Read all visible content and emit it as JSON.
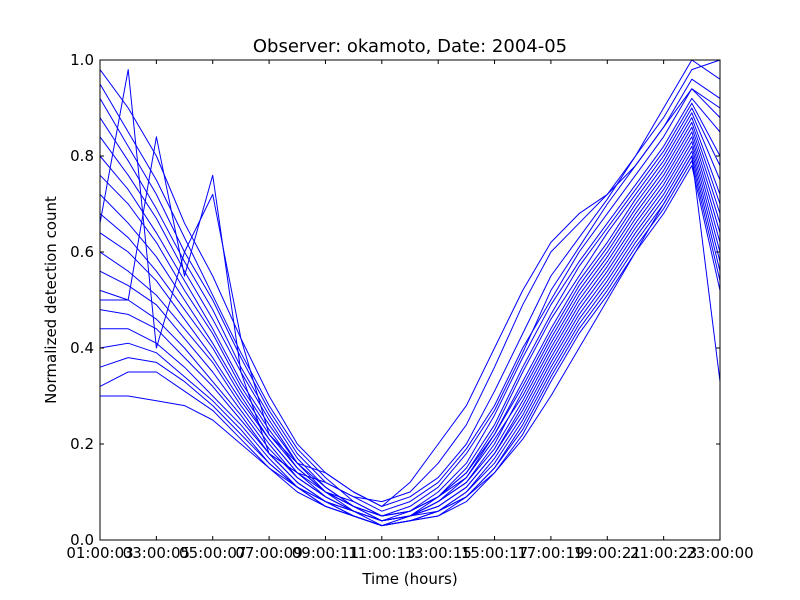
{
  "chart_data": {
    "type": "line",
    "title": "Observer: okamoto, Date: 2004-05",
    "xlabel": "Time (hours)",
    "ylabel": "Normalized detection count",
    "xlim": [
      "01:00:00",
      "23:00:00"
    ],
    "ylim": [
      0.0,
      1.0
    ],
    "grid": false,
    "line_color": "#0000ff",
    "x_ticks": [
      "01:00:03",
      "03:00:05",
      "05:00:07",
      "07:00:09",
      "09:00:11",
      "11:00:13",
      "13:00:15",
      "15:00:17",
      "17:00:19",
      "19:00:21",
      "21:00:23",
      "23:00:00"
    ],
    "y_ticks": [
      "0.0",
      "0.2",
      "0.4",
      "0.6",
      "0.8",
      "1.0"
    ],
    "x": [
      "01:00",
      "02:00",
      "03:00",
      "04:00",
      "05:00",
      "06:00",
      "07:00",
      "08:00",
      "09:00",
      "10:00",
      "11:00",
      "12:00",
      "13:00",
      "14:00",
      "15:00",
      "16:00",
      "17:00",
      "18:00",
      "19:00",
      "20:00",
      "21:00",
      "22:00",
      "23:00"
    ],
    "series": [
      {
        "values": [
          0.98,
          0.9,
          0.8,
          0.66,
          0.55,
          0.42,
          0.3,
          0.2,
          0.14,
          0.1,
          0.07,
          0.09,
          0.13,
          0.2,
          0.31,
          0.43,
          0.55,
          0.63,
          0.71,
          0.8,
          0.88,
          0.98,
          1.0
        ]
      },
      {
        "values": [
          0.95,
          0.85,
          0.75,
          0.63,
          0.51,
          0.39,
          0.28,
          0.19,
          0.13,
          0.08,
          0.05,
          0.07,
          0.11,
          0.18,
          0.27,
          0.39,
          0.52,
          0.61,
          0.7,
          0.78,
          0.86,
          0.96,
          0.92
        ]
      },
      {
        "values": [
          0.92,
          0.82,
          0.72,
          0.6,
          0.5,
          0.38,
          0.27,
          0.18,
          0.12,
          0.09,
          0.06,
          0.08,
          0.12,
          0.19,
          0.28,
          0.4,
          0.5,
          0.6,
          0.68,
          0.76,
          0.84,
          0.94,
          0.88
        ]
      },
      {
        "values": [
          0.88,
          0.79,
          0.69,
          0.58,
          0.48,
          0.36,
          0.26,
          0.17,
          0.11,
          0.07,
          0.04,
          0.06,
          0.1,
          0.16,
          0.26,
          0.38,
          0.49,
          0.58,
          0.66,
          0.74,
          0.82,
          0.92,
          0.85
        ]
      },
      {
        "values": [
          0.84,
          0.76,
          0.67,
          0.56,
          0.46,
          0.35,
          0.25,
          0.16,
          0.1,
          0.08,
          0.05,
          0.06,
          0.09,
          0.15,
          0.24,
          0.36,
          0.47,
          0.57,
          0.65,
          0.73,
          0.81,
          0.91,
          0.8
        ]
      },
      {
        "values": [
          0.8,
          0.73,
          0.64,
          0.54,
          0.44,
          0.33,
          0.24,
          0.16,
          0.11,
          0.07,
          0.04,
          0.05,
          0.09,
          0.14,
          0.23,
          0.35,
          0.46,
          0.55,
          0.64,
          0.72,
          0.8,
          0.9,
          0.78
        ]
      },
      {
        "values": [
          0.76,
          0.7,
          0.62,
          0.52,
          0.43,
          0.32,
          0.23,
          0.15,
          0.1,
          0.06,
          0.03,
          0.05,
          0.08,
          0.13,
          0.22,
          0.33,
          0.44,
          0.54,
          0.62,
          0.71,
          0.79,
          0.89,
          0.75
        ]
      },
      {
        "values": [
          0.72,
          0.66,
          0.59,
          0.5,
          0.41,
          0.31,
          0.22,
          0.15,
          0.1,
          0.07,
          0.05,
          0.06,
          0.09,
          0.14,
          0.22,
          0.32,
          0.43,
          0.53,
          0.61,
          0.7,
          0.78,
          0.88,
          0.72
        ]
      },
      {
        "values": [
          0.68,
          0.63,
          0.56,
          0.48,
          0.4,
          0.3,
          0.21,
          0.14,
          0.09,
          0.06,
          0.04,
          0.05,
          0.08,
          0.12,
          0.2,
          0.31,
          0.42,
          0.52,
          0.6,
          0.69,
          0.77,
          0.87,
          0.7
        ]
      },
      {
        "values": [
          0.64,
          0.6,
          0.54,
          0.46,
          0.38,
          0.29,
          0.21,
          0.14,
          0.1,
          0.07,
          0.05,
          0.06,
          0.09,
          0.13,
          0.21,
          0.3,
          0.41,
          0.51,
          0.59,
          0.68,
          0.76,
          0.86,
          0.68
        ]
      },
      {
        "values": [
          0.6,
          0.56,
          0.51,
          0.44,
          0.37,
          0.28,
          0.2,
          0.13,
          0.09,
          0.06,
          0.04,
          0.05,
          0.08,
          0.12,
          0.19,
          0.29,
          0.4,
          0.5,
          0.58,
          0.67,
          0.75,
          0.85,
          0.66
        ]
      },
      {
        "values": [
          0.56,
          0.53,
          0.49,
          0.42,
          0.35,
          0.27,
          0.19,
          0.13,
          0.09,
          0.06,
          0.04,
          0.05,
          0.07,
          0.11,
          0.18,
          0.28,
          0.39,
          0.49,
          0.57,
          0.66,
          0.74,
          0.84,
          0.64
        ]
      },
      {
        "values": [
          0.52,
          0.5,
          0.46,
          0.4,
          0.33,
          0.26,
          0.18,
          0.12,
          0.08,
          0.06,
          0.04,
          0.05,
          0.07,
          0.11,
          0.18,
          0.27,
          0.38,
          0.48,
          0.56,
          0.65,
          0.73,
          0.83,
          0.62
        ]
      },
      {
        "values": [
          0.48,
          0.47,
          0.44,
          0.38,
          0.32,
          0.25,
          0.18,
          0.12,
          0.08,
          0.05,
          0.03,
          0.04,
          0.06,
          0.1,
          0.17,
          0.26,
          0.37,
          0.47,
          0.55,
          0.64,
          0.72,
          0.82,
          0.6
        ]
      },
      {
        "values": [
          0.44,
          0.44,
          0.41,
          0.36,
          0.3,
          0.24,
          0.17,
          0.11,
          0.08,
          0.05,
          0.03,
          0.04,
          0.06,
          0.1,
          0.16,
          0.25,
          0.36,
          0.46,
          0.54,
          0.63,
          0.71,
          0.81,
          0.58
        ]
      },
      {
        "values": [
          0.4,
          0.41,
          0.39,
          0.34,
          0.29,
          0.23,
          0.16,
          0.11,
          0.07,
          0.05,
          0.03,
          0.04,
          0.06,
          0.09,
          0.15,
          0.24,
          0.35,
          0.45,
          0.53,
          0.62,
          0.7,
          0.8,
          0.56
        ]
      },
      {
        "values": [
          0.36,
          0.38,
          0.37,
          0.33,
          0.28,
          0.22,
          0.16,
          0.11,
          0.07,
          0.05,
          0.03,
          0.04,
          0.05,
          0.09,
          0.15,
          0.23,
          0.34,
          0.44,
          0.52,
          0.61,
          0.69,
          0.79,
          0.54
        ]
      },
      {
        "values": [
          0.32,
          0.35,
          0.35,
          0.31,
          0.27,
          0.21,
          0.15,
          0.1,
          0.07,
          0.05,
          0.03,
          0.04,
          0.05,
          0.08,
          0.14,
          0.22,
          0.33,
          0.43,
          0.51,
          0.6,
          0.68,
          0.78,
          0.52
        ]
      },
      {
        "values": [
          0.3,
          0.3,
          0.29,
          0.28,
          0.25,
          0.2,
          0.15,
          0.11,
          0.08,
          0.06,
          0.04,
          0.05,
          0.06,
          0.09,
          0.14,
          0.21,
          0.3,
          0.4,
          0.5,
          0.6,
          0.7,
          0.8,
          0.33
        ]
      },
      {
        "values": [
          0.66,
          0.98,
          0.4,
          0.6,
          0.72,
          0.42,
          0.22,
          0.16,
          0.14,
          0.1,
          0.07,
          0.12,
          0.2,
          0.28,
          0.4,
          0.52,
          0.62,
          0.68,
          0.72,
          0.8,
          0.9,
          1.0,
          0.96
        ]
      },
      {
        "values": [
          0.5,
          0.5,
          0.84,
          0.55,
          0.76,
          0.35,
          0.18,
          0.14,
          0.12,
          0.09,
          0.08,
          0.1,
          0.16,
          0.24,
          0.36,
          0.49,
          0.6,
          0.66,
          0.72,
          0.78,
          0.86,
          0.94,
          0.9
        ]
      }
    ]
  }
}
